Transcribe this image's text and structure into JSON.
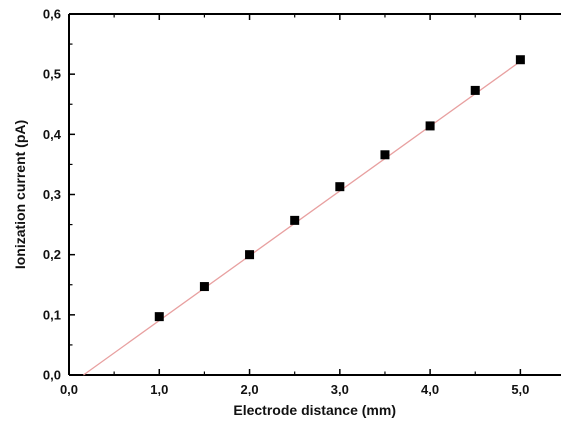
{
  "chart_data": {
    "type": "scatter",
    "title": "",
    "xlabel": "Electrode distance (mm)",
    "ylabel": "Ionization current (pA)",
    "xlim": [
      0.0,
      5.45
    ],
    "ylim": [
      0.0,
      0.6
    ],
    "xticks": [
      "0,0",
      "1,0",
      "2,0",
      "3,0",
      "4,0",
      "5,0"
    ],
    "xtick_values": [
      0,
      1,
      2,
      3,
      4,
      5
    ],
    "yticks": [
      "0,0",
      "0,1",
      "0,2",
      "0,3",
      "0,4",
      "0,5",
      "0,6"
    ],
    "ytick_values": [
      0,
      0.1,
      0.2,
      0.3,
      0.4,
      0.5,
      0.6
    ],
    "grid": false,
    "legend": "none",
    "series": [
      {
        "marker": "square",
        "color": "#000000",
        "x": [
          1.0,
          1.5,
          2.0,
          2.5,
          3.0,
          3.5,
          4.0,
          4.5,
          5.0
        ],
        "y": [
          0.097,
          0.147,
          0.2,
          0.257,
          0.313,
          0.366,
          0.414,
          0.473,
          0.524
        ]
      }
    ],
    "fit_line": {
      "type": "linear",
      "color": "#e8a0a0",
      "slope": 0.1077,
      "intercept": -0.0172,
      "x_range": [
        0.16,
        5.0
      ]
    }
  }
}
